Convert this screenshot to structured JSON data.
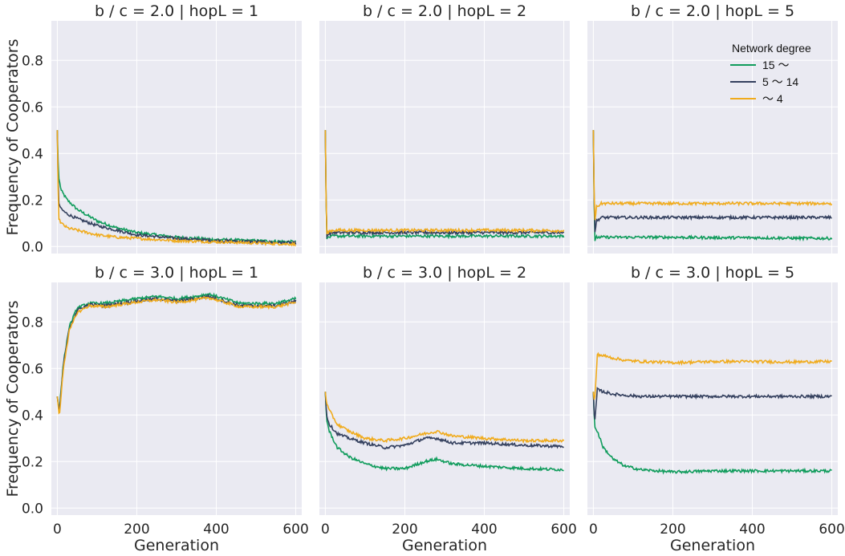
{
  "chart_data": {
    "type": "line",
    "figure": "faceted line plots",
    "xlabel": "Generation",
    "ylabel": "Frequency of Cooperators",
    "xlim": [
      -15,
      615
    ],
    "ylim": [
      -0.03,
      0.97
    ],
    "xticks": [
      0,
      200,
      400,
      600
    ],
    "yticks": [
      0.0,
      0.2,
      0.4,
      0.6,
      0.8
    ],
    "legend": {
      "title": "Network degree",
      "placement": "top-right of top-right panel",
      "entries": [
        {
          "label": "15 〜",
          "color": "#109c5c"
        },
        {
          "label": "5 〜 14",
          "color": "#34405e"
        },
        {
          "label": "〜 4",
          "color": "#f0ab1c"
        }
      ]
    },
    "panels": [
      {
        "title": "b / c = 2.0 | hopL = 1",
        "series": [
          {
            "name": "15 〜",
            "color": "#109c5c",
            "x": [
              0,
              3,
              10,
              25,
              50,
              100,
              150,
              200,
              300,
              400,
              500,
              600
            ],
            "y": [
              0.5,
              0.3,
              0.24,
              0.2,
              0.16,
              0.11,
              0.08,
              0.06,
              0.04,
              0.03,
              0.025,
              0.02
            ]
          },
          {
            "name": "5 〜 14",
            "color": "#34405e",
            "x": [
              0,
              3,
              10,
              25,
              50,
              100,
              150,
              200,
              300,
              400,
              500,
              600
            ],
            "y": [
              0.5,
              0.19,
              0.16,
              0.14,
              0.12,
              0.09,
              0.07,
              0.05,
              0.035,
              0.025,
              0.02,
              0.015
            ]
          },
          {
            "name": "〜 4",
            "color": "#f0ab1c",
            "x": [
              0,
              3,
              10,
              25,
              50,
              100,
              150,
              200,
              300,
              400,
              500,
              600
            ],
            "y": [
              0.5,
              0.12,
              0.1,
              0.08,
              0.07,
              0.05,
              0.04,
              0.035,
              0.025,
              0.02,
              0.015,
              0.01
            ]
          }
        ]
      },
      {
        "title": "b / c = 2.0 | hopL = 2",
        "series": [
          {
            "name": "15 〜",
            "color": "#109c5c",
            "x": [
              0,
              3,
              8,
              20,
              100,
              200,
              300,
              400,
              500,
              600
            ],
            "y": [
              0.5,
              0.03,
              0.04,
              0.045,
              0.045,
              0.045,
              0.045,
              0.045,
              0.045,
              0.045
            ]
          },
          {
            "name": "5 〜 14",
            "color": "#34405e",
            "x": [
              0,
              3,
              8,
              20,
              100,
              200,
              300,
              400,
              500,
              600
            ],
            "y": [
              0.5,
              0.04,
              0.055,
              0.06,
              0.06,
              0.06,
              0.06,
              0.06,
              0.06,
              0.06
            ]
          },
          {
            "name": "〜 4",
            "color": "#f0ab1c",
            "x": [
              0,
              3,
              8,
              20,
              100,
              200,
              300,
              400,
              500,
              600
            ],
            "y": [
              0.5,
              0.05,
              0.065,
              0.07,
              0.07,
              0.07,
              0.07,
              0.07,
              0.07,
              0.068
            ]
          }
        ]
      },
      {
        "title": "b / c = 2.0 | hopL = 5",
        "series": [
          {
            "name": "15 〜",
            "color": "#109c5c",
            "x": [
              0,
              3,
              8,
              20,
              100,
              200,
              300,
              400,
              500,
              600
            ],
            "y": [
              0.5,
              0.02,
              0.04,
              0.04,
              0.04,
              0.04,
              0.038,
              0.038,
              0.036,
              0.035
            ]
          },
          {
            "name": "5 〜 14",
            "color": "#34405e",
            "x": [
              0,
              3,
              8,
              20,
              100,
              200,
              300,
              400,
              500,
              600
            ],
            "y": [
              0.5,
              0.05,
              0.11,
              0.125,
              0.125,
              0.125,
              0.125,
              0.125,
              0.125,
              0.125
            ]
          },
          {
            "name": "〜 4",
            "color": "#f0ab1c",
            "x": [
              0,
              3,
              8,
              20,
              100,
              200,
              300,
              400,
              500,
              600
            ],
            "y": [
              0.5,
              0.1,
              0.17,
              0.185,
              0.185,
              0.185,
              0.185,
              0.185,
              0.185,
              0.185
            ]
          }
        ]
      },
      {
        "title": "b / c = 3.0 | hopL = 1",
        "series": [
          {
            "name": "15 〜",
            "color": "#109c5c",
            "x": [
              0,
              5,
              15,
              30,
              50,
              80,
              120,
              160,
              200,
              250,
              300,
              350,
              380,
              420,
              460,
              500,
              550,
              600
            ],
            "y": [
              0.48,
              0.42,
              0.62,
              0.78,
              0.86,
              0.88,
              0.88,
              0.89,
              0.9,
              0.91,
              0.9,
              0.91,
              0.92,
              0.9,
              0.88,
              0.88,
              0.88,
              0.9
            ]
          },
          {
            "name": "5 〜 14",
            "color": "#34405e",
            "x": [
              0,
              5,
              15,
              30,
              50,
              80,
              120,
              160,
              200,
              250,
              300,
              350,
              380,
              420,
              460,
              500,
              550,
              600
            ],
            "y": [
              0.48,
              0.41,
              0.61,
              0.77,
              0.85,
              0.875,
              0.87,
              0.88,
              0.89,
              0.9,
              0.89,
              0.9,
              0.91,
              0.89,
              0.87,
              0.87,
              0.87,
              0.89
            ]
          },
          {
            "name": "〜 4",
            "color": "#f0ab1c",
            "x": [
              0,
              5,
              15,
              30,
              50,
              80,
              120,
              160,
              200,
              250,
              300,
              350,
              380,
              420,
              460,
              500,
              550,
              600
            ],
            "y": [
              0.48,
              0.39,
              0.6,
              0.76,
              0.84,
              0.87,
              0.865,
              0.875,
              0.885,
              0.895,
              0.885,
              0.895,
              0.905,
              0.885,
              0.865,
              0.865,
              0.865,
              0.885
            ]
          }
        ]
      },
      {
        "title": "b / c = 3.0 | hopL = 2",
        "series": [
          {
            "name": "15 〜",
            "color": "#109c5c",
            "x": [
              0,
              3,
              10,
              30,
              60,
              100,
              150,
              200,
              250,
              280,
              320,
              400,
              500,
              600
            ],
            "y": [
              0.5,
              0.38,
              0.33,
              0.26,
              0.22,
              0.19,
              0.17,
              0.17,
              0.2,
              0.21,
              0.19,
              0.18,
              0.17,
              0.165
            ]
          },
          {
            "name": "5 〜 14",
            "color": "#34405e",
            "x": [
              0,
              3,
              10,
              30,
              60,
              100,
              150,
              200,
              250,
              280,
              320,
              400,
              500,
              600
            ],
            "y": [
              0.5,
              0.4,
              0.36,
              0.32,
              0.3,
              0.28,
              0.26,
              0.27,
              0.3,
              0.3,
              0.28,
              0.28,
              0.27,
              0.265
            ]
          },
          {
            "name": "〜 4",
            "color": "#f0ab1c",
            "x": [
              0,
              3,
              10,
              30,
              60,
              100,
              150,
              200,
              250,
              280,
              320,
              400,
              500,
              600
            ],
            "y": [
              0.5,
              0.45,
              0.42,
              0.36,
              0.33,
              0.3,
              0.29,
              0.3,
              0.32,
              0.33,
              0.31,
              0.3,
              0.29,
              0.29
            ]
          }
        ]
      },
      {
        "title": "b / c = 3.0 | hopL = 5",
        "series": [
          {
            "name": "15 〜",
            "color": "#109c5c",
            "x": [
              0,
              3,
              10,
              25,
              50,
              80,
              120,
              160,
              200,
              300,
              400,
              500,
              600
            ],
            "y": [
              0.5,
              0.35,
              0.33,
              0.26,
              0.21,
              0.18,
              0.165,
              0.16,
              0.155,
              0.16,
              0.16,
              0.16,
              0.16
            ]
          },
          {
            "name": "5 〜 14",
            "color": "#34405e",
            "x": [
              0,
              3,
              10,
              25,
              50,
              80,
              120,
              160,
              200,
              300,
              400,
              500,
              600
            ],
            "y": [
              0.5,
              0.36,
              0.51,
              0.5,
              0.49,
              0.485,
              0.48,
              0.48,
              0.48,
              0.48,
              0.48,
              0.48,
              0.48
            ]
          },
          {
            "name": "〜 4",
            "color": "#f0ab1c",
            "x": [
              0,
              3,
              10,
              25,
              50,
              80,
              120,
              160,
              200,
              300,
              400,
              500,
              600
            ],
            "y": [
              0.5,
              0.45,
              0.66,
              0.655,
              0.645,
              0.635,
              0.63,
              0.628,
              0.625,
              0.63,
              0.63,
              0.628,
              0.63
            ]
          }
        ]
      }
    ]
  }
}
